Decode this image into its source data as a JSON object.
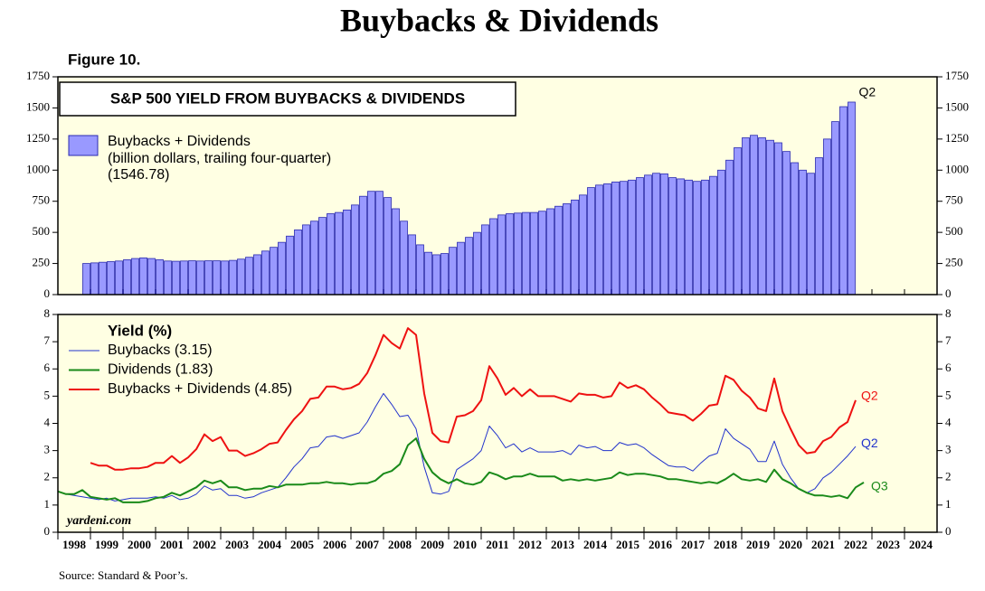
{
  "title": "Buybacks & Dividends",
  "figure": "Figure 10.",
  "source": "Source: Standard & Poor’s.",
  "chart_data": [
    {
      "type": "bar",
      "title": "S&P 500 YIELD FROM BUYBACKS & DIVIDENDS",
      "legend_note": [
        "(billion dollars, trailing four-quarter)",
        "(1546.78)"
      ],
      "end_label": "Q2",
      "x": [
        1998.875,
        1999.125,
        1999.375,
        1999.625,
        1999.875,
        2000.125,
        2000.375,
        2000.625,
        2000.875,
        2001.125,
        2001.375,
        2001.625,
        2001.875,
        2002.125,
        2002.375,
        2002.625,
        2002.875,
        2003.125,
        2003.375,
        2003.625,
        2003.875,
        2004.125,
        2004.375,
        2004.625,
        2004.875,
        2005.125,
        2005.375,
        2005.625,
        2005.875,
        2006.125,
        2006.375,
        2006.625,
        2006.875,
        2007.125,
        2007.375,
        2007.625,
        2007.875,
        2008.125,
        2008.375,
        2008.625,
        2008.875,
        2009.125,
        2009.375,
        2009.625,
        2009.875,
        2010.125,
        2010.375,
        2010.625,
        2010.875,
        2011.125,
        2011.375,
        2011.625,
        2011.875,
        2012.125,
        2012.375,
        2012.625,
        2012.875,
        2013.125,
        2013.375,
        2013.625,
        2013.875,
        2014.125,
        2014.375,
        2014.625,
        2014.875,
        2015.125,
        2015.375,
        2015.625,
        2015.875,
        2016.125,
        2016.375,
        2016.625,
        2016.875,
        2017.125,
        2017.375,
        2017.625,
        2017.875,
        2018.125,
        2018.375,
        2018.625,
        2018.875,
        2019.125,
        2019.375,
        2019.625,
        2019.875,
        2020.125,
        2020.375,
        2020.625,
        2020.875,
        2021.125,
        2021.375,
        2021.625,
        2021.875,
        2022.125,
        2022.375
      ],
      "series": [
        {
          "name": "Buybacks + Dividends",
          "color": "#9999ff",
          "values": [
            250,
            255,
            260,
            265,
            270,
            280,
            290,
            295,
            290,
            280,
            270,
            268,
            270,
            272,
            270,
            272,
            272,
            270,
            275,
            285,
            300,
            320,
            350,
            380,
            420,
            470,
            520,
            560,
            590,
            620,
            650,
            660,
            680,
            720,
            790,
            830,
            830,
            780,
            690,
            590,
            480,
            400,
            340,
            320,
            330,
            380,
            420,
            460,
            500,
            560,
            610,
            640,
            650,
            655,
            660,
            660,
            670,
            690,
            710,
            730,
            760,
            800,
            860,
            880,
            890,
            905,
            910,
            920,
            940,
            960,
            975,
            970,
            940,
            930,
            920,
            910,
            920,
            950,
            1000,
            1080,
            1180,
            1260,
            1280,
            1260,
            1240,
            1220,
            1150,
            1060,
            1000,
            975,
            1100,
            1250,
            1390,
            1510,
            1546.78
          ]
        }
      ],
      "xlim": [
        1998,
        2025
      ],
      "xticks": [
        1998,
        1999,
        2000,
        2001,
        2002,
        2003,
        2004,
        2005,
        2006,
        2007,
        2008,
        2009,
        2010,
        2011,
        2012,
        2013,
        2014,
        2015,
        2016,
        2017,
        2018,
        2019,
        2020,
        2021,
        2022,
        2023,
        2024
      ],
      "ylim": [
        0,
        1750
      ],
      "yticks": [
        0,
        250,
        500,
        750,
        1000,
        1250,
        1500,
        1750
      ]
    },
    {
      "type": "line",
      "legend_title": "Yield (%)",
      "credit": "yardeni.com",
      "x": [
        1998,
        1998.25,
        1998.5,
        1998.75,
        1999,
        1999.25,
        1999.5,
        1999.75,
        2000,
        2000.25,
        2000.5,
        2000.75,
        2001,
        2001.25,
        2001.5,
        2001.75,
        2002,
        2002.25,
        2002.5,
        2002.75,
        2003,
        2003.25,
        2003.5,
        2003.75,
        2004,
        2004.25,
        2004.5,
        2004.75,
        2005,
        2005.25,
        2005.5,
        2005.75,
        2006,
        2006.25,
        2006.5,
        2006.75,
        2007,
        2007.25,
        2007.5,
        2007.75,
        2008,
        2008.25,
        2008.5,
        2008.75,
        2009,
        2009.25,
        2009.5,
        2009.75,
        2010,
        2010.25,
        2010.5,
        2010.75,
        2011,
        2011.25,
        2011.5,
        2011.75,
        2012,
        2012.25,
        2012.5,
        2012.75,
        2013,
        2013.25,
        2013.5,
        2013.75,
        2014,
        2014.25,
        2014.5,
        2014.75,
        2015,
        2015.25,
        2015.5,
        2015.75,
        2016,
        2016.25,
        2016.5,
        2016.75,
        2017,
        2017.25,
        2017.5,
        2017.75,
        2018,
        2018.25,
        2018.5,
        2018.75,
        2019,
        2019.25,
        2019.5,
        2019.75,
        2020,
        2020.25,
        2020.5,
        2020.75,
        2021,
        2021.25,
        2021.5,
        2021.75,
        2022,
        2022.25,
        2022.5,
        2022.75
      ],
      "series": [
        {
          "name": "Buybacks (3.15)",
          "color": "#2233cc",
          "width": 1,
          "end_label": "Q2",
          "values": [
            1.5,
            1.4,
            1.35,
            1.3,
            1.25,
            1.2,
            1.25,
            1.15,
            1.2,
            1.25,
            1.25,
            1.25,
            1.3,
            1.25,
            1.35,
            1.2,
            1.25,
            1.4,
            1.7,
            1.55,
            1.6,
            1.35,
            1.35,
            1.25,
            1.3,
            1.45,
            1.55,
            1.65,
            2.0,
            2.4,
            2.7,
            3.1,
            3.15,
            3.5,
            3.55,
            3.45,
            3.55,
            3.65,
            4.05,
            4.6,
            5.1,
            4.7,
            4.25,
            4.3,
            3.8,
            2.4,
            1.45,
            1.4,
            1.5,
            2.3,
            2.5,
            2.7,
            3.0,
            3.9,
            3.55,
            3.1,
            3.25,
            2.95,
            3.1,
            2.95,
            2.95,
            2.95,
            3.0,
            2.85,
            3.2,
            3.1,
            3.15,
            3.0,
            3.0,
            3.3,
            3.2,
            3.25,
            3.1,
            2.85,
            2.65,
            2.45,
            2.4,
            2.4,
            2.25,
            2.55,
            2.8,
            2.9,
            3.8,
            3.45,
            3.25,
            3.05,
            2.6,
            2.6,
            3.35,
            2.5,
            2.0,
            1.6,
            1.45,
            1.6,
            2.0,
            2.2,
            2.5,
            2.8,
            3.15,
            null
          ]
        },
        {
          "name": "Dividends (1.83)",
          "color": "#1a8a1a",
          "width": 2,
          "end_label": "Q3",
          "values": [
            1.5,
            1.4,
            1.4,
            1.55,
            1.3,
            1.25,
            1.2,
            1.25,
            1.1,
            1.1,
            1.1,
            1.15,
            1.25,
            1.3,
            1.45,
            1.35,
            1.5,
            1.65,
            1.9,
            1.8,
            1.9,
            1.65,
            1.65,
            1.55,
            1.6,
            1.6,
            1.7,
            1.65,
            1.75,
            1.75,
            1.75,
            1.8,
            1.8,
            1.85,
            1.8,
            1.8,
            1.75,
            1.8,
            1.8,
            1.9,
            2.15,
            2.25,
            2.5,
            3.2,
            3.45,
            2.7,
            2.2,
            1.95,
            1.8,
            1.95,
            1.8,
            1.75,
            1.85,
            2.2,
            2.1,
            1.95,
            2.05,
            2.05,
            2.15,
            2.05,
            2.05,
            2.05,
            1.9,
            1.95,
            1.9,
            1.95,
            1.9,
            1.95,
            2.0,
            2.2,
            2.1,
            2.15,
            2.15,
            2.1,
            2.05,
            1.95,
            1.95,
            1.9,
            1.85,
            1.8,
            1.85,
            1.8,
            1.95,
            2.15,
            1.95,
            1.9,
            1.95,
            1.85,
            2.3,
            1.95,
            1.8,
            1.6,
            1.45,
            1.35,
            1.35,
            1.3,
            1.35,
            1.25,
            1.65,
            1.83
          ]
        },
        {
          "name": "Buybacks + Dividends (4.85)",
          "color": "#ee1111",
          "width": 2,
          "end_label": "Q2",
          "values": [
            null,
            null,
            null,
            null,
            2.55,
            2.45,
            2.45,
            2.3,
            2.3,
            2.35,
            2.35,
            2.4,
            2.55,
            2.55,
            2.8,
            2.55,
            2.75,
            3.05,
            3.6,
            3.35,
            3.5,
            3.0,
            3.0,
            2.8,
            2.9,
            3.05,
            3.25,
            3.3,
            3.75,
            4.15,
            4.45,
            4.9,
            4.95,
            5.35,
            5.35,
            5.25,
            5.3,
            5.45,
            5.85,
            6.5,
            7.25,
            6.95,
            6.75,
            7.5,
            7.25,
            5.1,
            3.65,
            3.35,
            3.3,
            4.25,
            4.3,
            4.45,
            4.85,
            6.1,
            5.65,
            5.05,
            5.3,
            5.0,
            5.25,
            5.0,
            5.0,
            5.0,
            4.9,
            4.8,
            5.1,
            5.05,
            5.05,
            4.95,
            5.0,
            5.5,
            5.3,
            5.4,
            5.25,
            4.95,
            4.7,
            4.4,
            4.35,
            4.3,
            4.1,
            4.35,
            4.65,
            4.7,
            5.75,
            5.6,
            5.2,
            4.95,
            4.55,
            4.45,
            5.65,
            4.45,
            3.8,
            3.2,
            2.9,
            2.95,
            3.35,
            3.5,
            3.85,
            4.05,
            4.85,
            null
          ]
        }
      ],
      "xlim": [
        1998,
        2025
      ],
      "xticks": [
        1998,
        1999,
        2000,
        2001,
        2002,
        2003,
        2004,
        2005,
        2006,
        2007,
        2008,
        2009,
        2010,
        2011,
        2012,
        2013,
        2014,
        2015,
        2016,
        2017,
        2018,
        2019,
        2020,
        2021,
        2022,
        2023,
        2024
      ],
      "ylim": [
        0,
        8
      ],
      "yticks": [
        0,
        1,
        2,
        3,
        4,
        5,
        6,
        7,
        8
      ]
    }
  ]
}
